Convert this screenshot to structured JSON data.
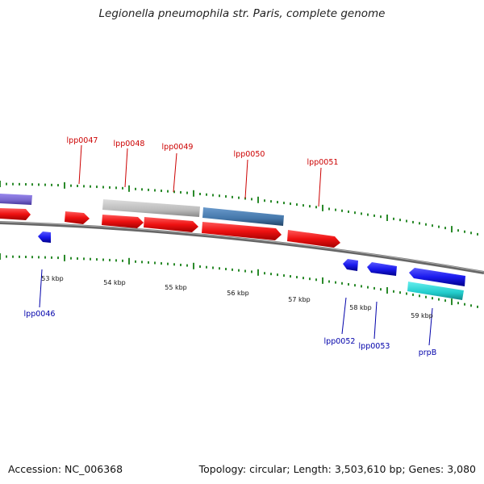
{
  "title": "Legionella pneumophila str. Paris, complete genome",
  "footer": {
    "accession": "Accession: NC_006368",
    "summary": "Topology: circular; Length: 3,503,610 bp; Genes: 3,080"
  },
  "colors": {
    "forward_label": "#cc0000",
    "reverse_label": "#0000aa",
    "cds": "#ee1111",
    "reverse_gene": "#1a1aee",
    "tick": "#2a8a2a",
    "backbone": "#777777",
    "gray_feature": "#bbbbbb",
    "steelblue_feature": "#4477aa",
    "purple_feature": "#7766cc",
    "cyan_feature": "#22cccc"
  },
  "scale": {
    "tick_labels": [
      "53 kbp",
      "54 kbp",
      "55 kbp",
      "56 kbp",
      "57 kbp",
      "58 kbp",
      "59 kbp"
    ]
  },
  "forward_labels": [
    "lpp0047",
    "lpp0048",
    "lpp0049",
    "lpp0050",
    "lpp0051"
  ],
  "reverse_labels": [
    "lpp0046",
    "lpp0052",
    "lpp0053",
    "prpB"
  ]
}
